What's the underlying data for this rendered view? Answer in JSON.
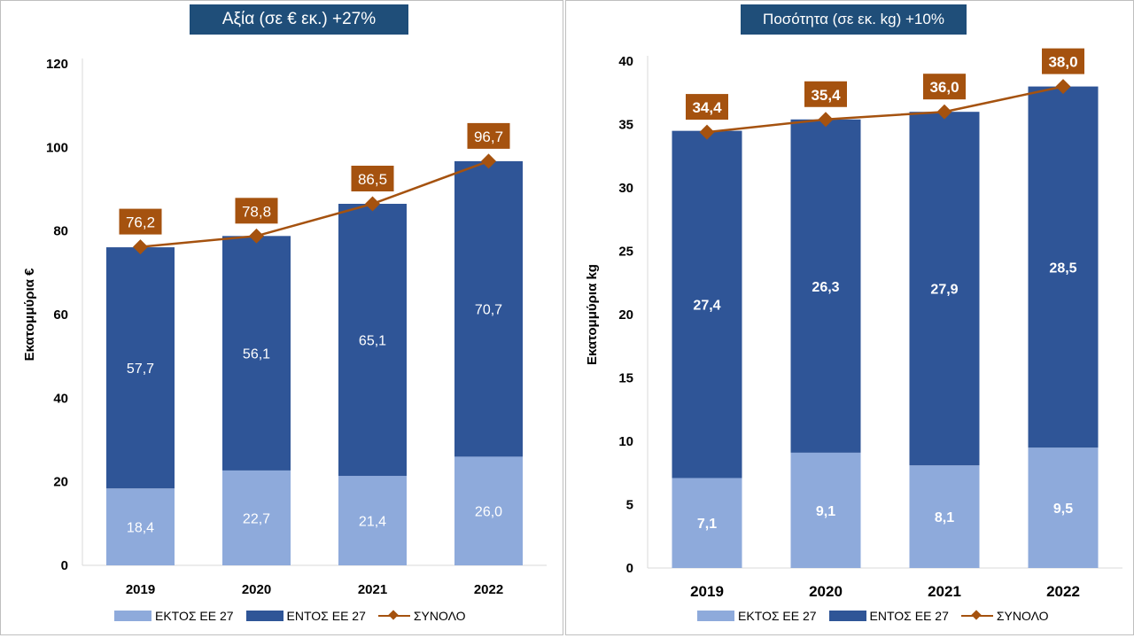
{
  "colors": {
    "outside_eu": "#8eaadb",
    "inside_eu": "#2f5597",
    "total": "#a5520f",
    "title_bg": "#1f4e79",
    "axis": "#d9d9d9"
  },
  "legend": {
    "outside": "ΕΚΤΟΣ ΕΕ 27",
    "inside": "ΕΝΤΟΣ ΕΕ 27",
    "total": "ΣΥΝΟΛΟ"
  },
  "chart_data": [
    {
      "type": "bar",
      "stacked": true,
      "title": "Αξία (σε € εκ.) +27%",
      "ylabel": "Εκατομμύρια €",
      "ylim": [
        0,
        120
      ],
      "yticks": [
        "0",
        "20",
        "40",
        "60",
        "80",
        "100",
        "120"
      ],
      "categories": [
        "2019",
        "2020",
        "2021",
        "2022"
      ],
      "series": [
        {
          "name": "ΕΚΤΟΣ ΕΕ 27",
          "values": [
            18.4,
            22.7,
            21.4,
            26.0
          ],
          "labels": [
            "18,4",
            "22,7",
            "21,4",
            "26,0"
          ]
        },
        {
          "name": "ΕΝΤΟΣ ΕΕ 27",
          "values": [
            57.7,
            56.1,
            65.1,
            70.7
          ],
          "labels": [
            "57,7",
            "56,1",
            "65,1",
            "70,7"
          ]
        },
        {
          "name": "ΣΥΝΟΛΟ",
          "type": "line",
          "values": [
            76.2,
            78.8,
            86.5,
            96.7
          ],
          "labels": [
            "76,2",
            "78,8",
            "86,5",
            "96,7"
          ]
        }
      ],
      "legend_position": "bottom"
    },
    {
      "type": "bar",
      "stacked": true,
      "title": "Ποσότητα (σε εκ. kg) +10%",
      "ylabel": "Εκατομμύρια kg",
      "ylim": [
        0,
        40
      ],
      "yticks": [
        "0",
        "5",
        "10",
        "15",
        "20",
        "25",
        "30",
        "35",
        "40"
      ],
      "categories": [
        "2019",
        "2020",
        "2021",
        "2022"
      ],
      "series": [
        {
          "name": "ΕΚΤΟΣ ΕΕ 27",
          "values": [
            7.1,
            9.1,
            8.1,
            9.5
          ],
          "labels": [
            "7,1",
            "9,1",
            "8,1",
            "9,5"
          ]
        },
        {
          "name": "ΕΝΤΟΣ ΕΕ 27",
          "values": [
            27.4,
            26.3,
            27.9,
            28.5
          ],
          "labels": [
            "27,4",
            "26,3",
            "27,9",
            "28,5"
          ]
        },
        {
          "name": "ΣΥΝΟΛΟ",
          "type": "line",
          "values": [
            34.4,
            35.4,
            36.0,
            38.0
          ],
          "labels": [
            "34,4",
            "35,4",
            "36,0",
            "38,0"
          ]
        }
      ],
      "legend_position": "bottom"
    }
  ]
}
